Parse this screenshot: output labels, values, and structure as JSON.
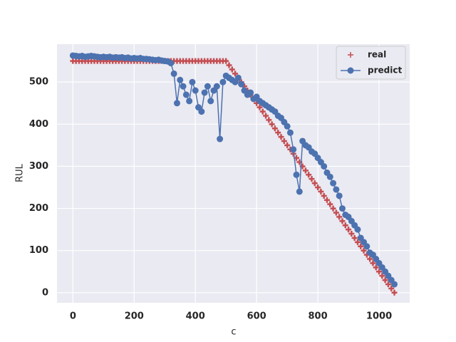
{
  "chart_data": {
    "type": "line",
    "xlabel": "c",
    "ylabel": "RUL",
    "x": [
      0,
      10,
      20,
      30,
      40,
      50,
      60,
      70,
      80,
      90,
      100,
      110,
      120,
      130,
      140,
      150,
      160,
      170,
      180,
      190,
      200,
      210,
      220,
      230,
      240,
      250,
      260,
      270,
      280,
      290,
      300,
      310,
      320,
      330,
      340,
      350,
      360,
      370,
      380,
      390,
      400,
      410,
      420,
      430,
      440,
      450,
      460,
      470,
      480,
      490,
      500,
      510,
      520,
      530,
      540,
      550,
      560,
      570,
      580,
      590,
      600,
      610,
      620,
      630,
      640,
      650,
      660,
      670,
      680,
      690,
      700,
      710,
      720,
      730,
      740,
      750,
      760,
      770,
      780,
      790,
      800,
      810,
      820,
      830,
      840,
      850,
      860,
      870,
      880,
      890,
      900,
      910,
      920,
      930,
      940,
      950,
      960,
      970,
      980,
      990,
      1000,
      1010,
      1020,
      1030,
      1040,
      1050
    ],
    "series": [
      {
        "name": "real",
        "color": "#c44e52",
        "marker": "plus",
        "values": [
          550,
          550,
          550,
          550,
          550,
          550,
          550,
          550,
          550,
          550,
          550,
          550,
          550,
          550,
          550,
          550,
          550,
          550,
          550,
          550,
          550,
          550,
          550,
          550,
          550,
          550,
          550,
          550,
          550,
          550,
          550,
          550,
          550,
          550,
          550,
          550,
          550,
          550,
          550,
          550,
          550,
          550,
          550,
          550,
          550,
          550,
          550,
          550,
          550,
          550,
          550,
          540,
          530,
          520,
          510,
          500,
          490,
          480,
          470,
          460,
          450,
          440,
          430,
          420,
          410,
          400,
          390,
          380,
          370,
          360,
          350,
          340,
          330,
          320,
          310,
          300,
          290,
          280,
          270,
          260,
          250,
          240,
          230,
          220,
          210,
          200,
          190,
          180,
          170,
          160,
          150,
          140,
          130,
          120,
          110,
          100,
          90,
          80,
          70,
          60,
          50,
          40,
          30,
          20,
          10,
          0
        ]
      },
      {
        "name": "predict",
        "color": "#4c72b0",
        "marker": "circle",
        "values": [
          563,
          562,
          561,
          562,
          560,
          561,
          562,
          561,
          560,
          559,
          560,
          559,
          560,
          558,
          559,
          558,
          559,
          557,
          558,
          556,
          557,
          556,
          557,
          555,
          555,
          554,
          553,
          552,
          553,
          551,
          550,
          549,
          545,
          520,
          450,
          505,
          490,
          470,
          455,
          500,
          480,
          440,
          430,
          475,
          490,
          455,
          480,
          490,
          365,
          500,
          515,
          510,
          505,
          500,
          510,
          495,
          480,
          470,
          475,
          460,
          465,
          455,
          450,
          445,
          440,
          435,
          430,
          420,
          415,
          405,
          395,
          380,
          340,
          280,
          240,
          360,
          350,
          345,
          335,
          330,
          320,
          310,
          300,
          285,
          275,
          260,
          245,
          230,
          200,
          185,
          180,
          170,
          160,
          150,
          130,
          120,
          110,
          95,
          90,
          80,
          70,
          60,
          50,
          40,
          30,
          20
        ]
      }
    ],
    "xlim": [
      -52,
      1100
    ],
    "ylim": [
      -24,
      590
    ],
    "xticks": [
      0,
      200,
      400,
      600,
      800,
      1000
    ],
    "yticks": [
      0,
      100,
      200,
      300,
      400,
      500
    ],
    "grid": true,
    "legend": "upper right"
  }
}
